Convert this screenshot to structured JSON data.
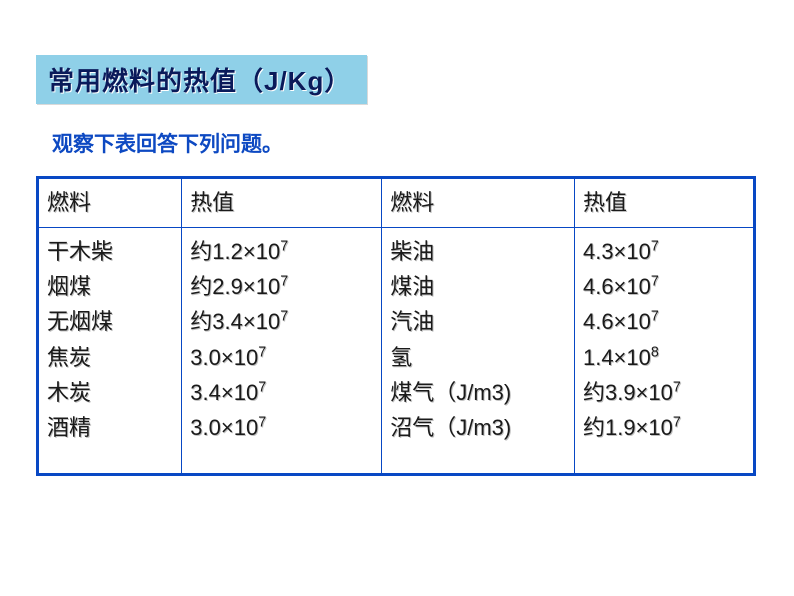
{
  "title": "常用燃料的热值（J/Kg）",
  "instruction": "观察下表回答下列问题。",
  "colors": {
    "title_bg": "#8fd0e8",
    "title_text": "#0a1a5a",
    "instruction_text": "#0d49c2",
    "border": "#0848c4",
    "cell_text": "#1a1a1a",
    "page_bg": "#ffffff"
  },
  "table": {
    "headers": {
      "fuel": "燃料",
      "value": "热值"
    },
    "left": [
      {
        "fuel": "干木柴",
        "value": "约1.2×10",
        "exp": "7"
      },
      {
        "fuel": "烟煤",
        "value": "约2.9×10",
        "exp": "7"
      },
      {
        "fuel": "无烟煤",
        "value": "约3.4×10",
        "exp": "7"
      },
      {
        "fuel": "焦炭",
        "value": "3.0×10",
        "exp": "7"
      },
      {
        "fuel": "木炭",
        "value": "3.4×10",
        "exp": "7"
      },
      {
        "fuel": "酒精",
        "value": "3.0×10",
        "exp": "7"
      }
    ],
    "right": [
      {
        "fuel": "柴油",
        "value": "4.3×10",
        "exp": "7"
      },
      {
        "fuel": "煤油",
        "value": "4.6×10",
        "exp": "7"
      },
      {
        "fuel": "汽油",
        "value": "4.6×10",
        "exp": "7"
      },
      {
        "fuel": "氢",
        "value": "1.4×10",
        "exp": "8"
      },
      {
        "fuel": "煤气（J/m3)",
        "value": "约3.9×10",
        "exp": "7"
      },
      {
        "fuel": "沼气（J/m3)",
        "value": "约1.9×10",
        "exp": "7"
      }
    ]
  }
}
